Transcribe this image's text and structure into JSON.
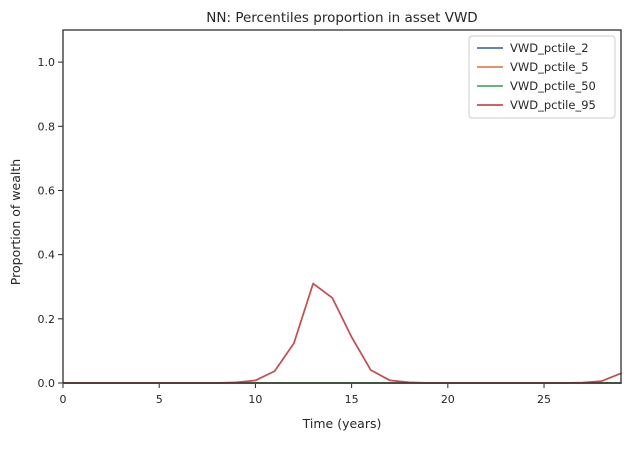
{
  "chart_data": {
    "type": "line",
    "title": "NN: Percentiles proportion in asset VWD",
    "xlabel": "Time (years)",
    "ylabel": "Proportion of wealth",
    "xlim": [
      0,
      29
    ],
    "ylim": [
      0,
      1.1
    ],
    "xticks": [
      0,
      5,
      10,
      15,
      20,
      25
    ],
    "yticks": [
      0.0,
      0.2,
      0.4,
      0.6,
      0.8,
      1.0
    ],
    "xtick_labels": [
      "0",
      "5",
      "10",
      "15",
      "20",
      "25"
    ],
    "ytick_labels": [
      "0.0",
      "0.2",
      "0.4",
      "0.6",
      "0.8",
      "1.0"
    ],
    "legend_position": "top-right",
    "grid": false,
    "x": [
      0,
      1,
      2,
      3,
      4,
      5,
      6,
      7,
      8,
      9,
      10,
      11,
      12,
      13,
      14,
      15,
      16,
      17,
      18,
      19,
      20,
      21,
      22,
      23,
      24,
      25,
      26,
      27,
      28,
      29
    ],
    "series": [
      {
        "name": "VWD_pctile_2",
        "color": "#4c72b0",
        "values": [
          0,
          0,
          0,
          0,
          0,
          0,
          0,
          0,
          0,
          0,
          0,
          0,
          0,
          0,
          0,
          0,
          0,
          0,
          0,
          0,
          0,
          0,
          0,
          0,
          0,
          0,
          0,
          0,
          0,
          0
        ]
      },
      {
        "name": "VWD_pctile_5",
        "color": "#dd8452",
        "values": [
          0,
          0,
          0,
          0,
          0,
          0,
          0,
          0,
          0,
          0,
          0,
          0,
          0,
          0,
          0,
          0,
          0,
          0,
          0,
          0,
          0,
          0,
          0,
          0,
          0,
          0,
          0,
          0,
          0,
          0
        ]
      },
      {
        "name": "VWD_pctile_50",
        "color": "#55a868",
        "values": [
          0,
          0,
          0,
          0,
          0,
          0,
          0,
          0,
          0,
          0,
          0,
          0,
          0,
          0,
          0,
          0,
          0,
          0,
          0,
          0,
          0,
          0,
          0,
          0,
          0,
          0,
          0,
          0,
          0,
          0
        ]
      },
      {
        "name": "VWD_pctile_95",
        "color": "#c44e52",
        "values": [
          0,
          0,
          0,
          0,
          0,
          0,
          0,
          0,
          0,
          0.002,
          0.008,
          0.037,
          0.124,
          0.31,
          0.265,
          0.143,
          0.04,
          0.008,
          0.002,
          0,
          0,
          0,
          0,
          0,
          0,
          0,
          0,
          0.001,
          0.006,
          0.03
        ]
      }
    ]
  }
}
